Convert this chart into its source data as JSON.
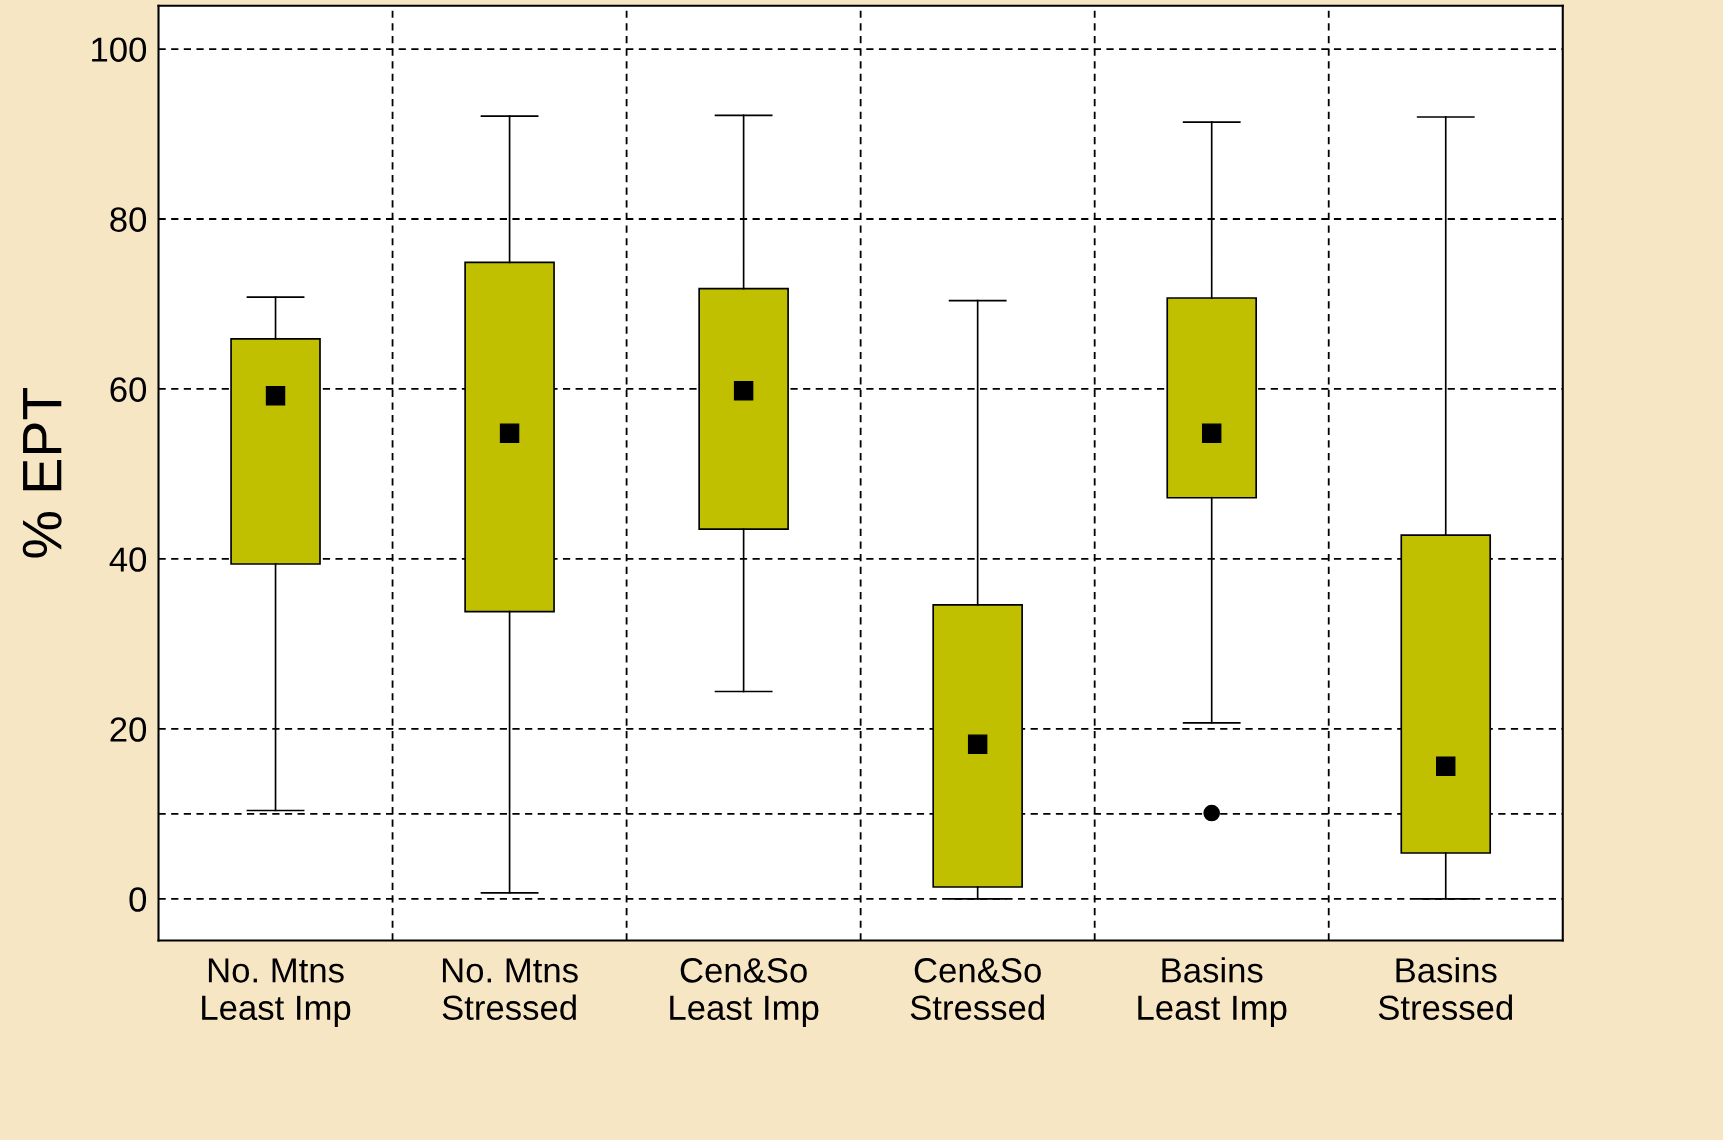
{
  "chart_data": {
    "type": "box",
    "ylabel": "% EPT",
    "categories": [
      "No. Mtns\nLeast Imp",
      "No. Mtns\nStressed",
      "Cen&So\nLeast Imp",
      "Cen&So\nStressed",
      "Basins\nLeast Imp",
      "Basins\nStressed"
    ],
    "color": "#c0c000",
    "boxes": [
      {
        "low": 10.4,
        "q1": 39.4,
        "median": 59.2,
        "q3": 65.9,
        "high": 70.8
      },
      {
        "low": 0.7,
        "q1": 33.8,
        "median": 54.8,
        "q3": 74.9,
        "high": 92.1
      },
      {
        "low": 24.4,
        "q1": 43.5,
        "median": 59.8,
        "q3": 71.8,
        "high": 92.2
      },
      {
        "low": 0,
        "q1": 1.4,
        "median": 18.2,
        "q3": 34.6,
        "high": 70.4
      },
      {
        "low": 20.7,
        "q1": 47.2,
        "median": 54.8,
        "q3": 70.7,
        "high": 91.4,
        "outliers": [
          10.1
        ]
      },
      {
        "low": 0,
        "q1": 5.4,
        "median": 15.6,
        "q3": 42.8,
        "high": 92
      }
    ],
    "ylim": [
      -4.9,
      105.1
    ],
    "yticks": [
      0,
      20,
      40,
      60,
      80,
      100
    ],
    "ref_lines": [
      {
        "axis": "y",
        "value": 10,
        "color": "#000000",
        "line_style": "dashed"
      }
    ],
    "grid": true,
    "marker": "square"
  }
}
